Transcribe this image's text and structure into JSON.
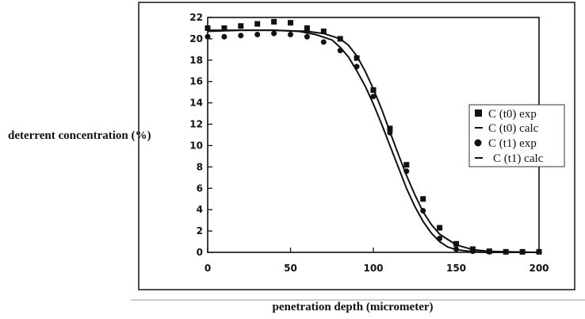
{
  "chart_data": {
    "type": "scatter",
    "title": "",
    "xlabel": "penetration depth (micrometer)",
    "ylabel": "deterrent concentration (%)",
    "xlim": [
      0,
      200
    ],
    "ylim": [
      0,
      22
    ],
    "xticks": [
      0,
      50,
      100,
      150,
      200
    ],
    "yticks": [
      0,
      2,
      4,
      6,
      8,
      10,
      12,
      14,
      16,
      18,
      20,
      22
    ],
    "grid": false,
    "legend_position": "right",
    "series": [
      {
        "name": "C (t0) exp",
        "kind": "points",
        "marker": "square",
        "x": [
          0,
          10,
          20,
          30,
          40,
          50,
          60,
          70,
          80,
          90,
          100,
          110,
          120,
          130,
          140,
          150,
          160,
          170,
          180,
          190,
          200
        ],
        "y": [
          21.0,
          21.0,
          21.2,
          21.4,
          21.6,
          21.5,
          21.0,
          20.7,
          20.0,
          18.2,
          15.2,
          11.6,
          8.2,
          5.0,
          2.3,
          0.8,
          0.3,
          0.1,
          0.05,
          0.05,
          0.05
        ]
      },
      {
        "name": "C (t0) calc",
        "kind": "line",
        "x": [
          0,
          20,
          40,
          60,
          70,
          80,
          85,
          90,
          95,
          100,
          105,
          110,
          115,
          120,
          125,
          130,
          135,
          140,
          150,
          160,
          170,
          180,
          200
        ],
        "y": [
          20.8,
          20.8,
          20.8,
          20.7,
          20.5,
          20.0,
          19.4,
          18.4,
          17.0,
          15.3,
          13.4,
          11.3,
          9.2,
          7.2,
          5.4,
          3.8,
          2.6,
          1.7,
          0.7,
          0.25,
          0.1,
          0.05,
          0.0
        ]
      },
      {
        "name": "C (t1) exp",
        "kind": "points",
        "marker": "circle",
        "x": [
          0,
          10,
          20,
          30,
          40,
          50,
          60,
          70,
          80,
          90,
          100,
          110,
          120,
          130,
          140,
          150,
          160,
          170,
          180,
          190,
          200
        ],
        "y": [
          20.2,
          20.2,
          20.3,
          20.4,
          20.5,
          20.4,
          20.2,
          19.7,
          18.9,
          17.4,
          14.6,
          11.2,
          7.6,
          3.9,
          1.3,
          0.3,
          0.1,
          0.05,
          0.05,
          0.05,
          0.05
        ]
      },
      {
        "name": "C (t1) calc",
        "kind": "line",
        "x": [
          0,
          20,
          40,
          55,
          65,
          75,
          80,
          85,
          90,
          95,
          100,
          105,
          110,
          115,
          120,
          125,
          130,
          135,
          140,
          145,
          150,
          160,
          170,
          200
        ],
        "y": [
          20.7,
          20.8,
          20.8,
          20.7,
          20.4,
          19.9,
          19.2,
          18.3,
          17.0,
          15.6,
          13.9,
          12.0,
          10.0,
          8.0,
          6.0,
          4.3,
          2.9,
          1.8,
          1.0,
          0.5,
          0.25,
          0.05,
          0.0,
          0.0
        ]
      }
    ]
  }
}
